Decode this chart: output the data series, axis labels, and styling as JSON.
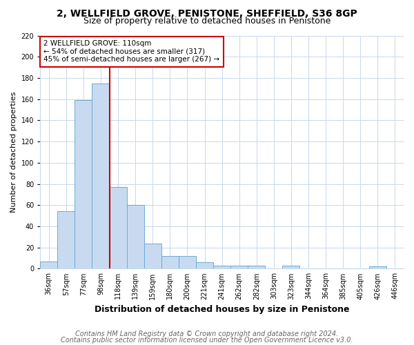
{
  "title": "2, WELLFIELD GROVE, PENISTONE, SHEFFIELD, S36 8GP",
  "subtitle": "Size of property relative to detached houses in Penistone",
  "xlabel": "Distribution of detached houses by size in Penistone",
  "ylabel": "Number of detached properties",
  "categories": [
    "36sqm",
    "57sqm",
    "77sqm",
    "98sqm",
    "118sqm",
    "139sqm",
    "159sqm",
    "180sqm",
    "200sqm",
    "221sqm",
    "241sqm",
    "262sqm",
    "282sqm",
    "303sqm",
    "323sqm",
    "344sqm",
    "364sqm",
    "385sqm",
    "405sqm",
    "426sqm",
    "446sqm"
  ],
  "values": [
    7,
    54,
    159,
    175,
    77,
    60,
    24,
    12,
    12,
    6,
    3,
    3,
    3,
    0,
    3,
    0,
    0,
    0,
    0,
    2,
    0
  ],
  "bar_color": "#c8daf0",
  "bar_edge_color": "#6aaad4",
  "vline_color": "#cc0000",
  "vline_x_index": 4,
  "annotation_text": "2 WELLFIELD GROVE: 110sqm\n← 54% of detached houses are smaller (317)\n45% of semi-detached houses are larger (267) →",
  "annotation_box_color": "#ffffff",
  "annotation_box_edge": "#cc0000",
  "ylim": [
    0,
    220
  ],
  "yticks": [
    0,
    20,
    40,
    60,
    80,
    100,
    120,
    140,
    160,
    180,
    200,
    220
  ],
  "footer_line1": "Contains HM Land Registry data © Crown copyright and database right 2024.",
  "footer_line2": "Contains public sector information licensed under the Open Government Licence v3.0.",
  "bg_color": "#ffffff",
  "grid_color": "#c8d8ea",
  "title_fontsize": 10,
  "subtitle_fontsize": 9,
  "xlabel_fontsize": 9,
  "ylabel_fontsize": 8,
  "tick_fontsize": 7,
  "annotation_fontsize": 7.5,
  "footer_fontsize": 7
}
